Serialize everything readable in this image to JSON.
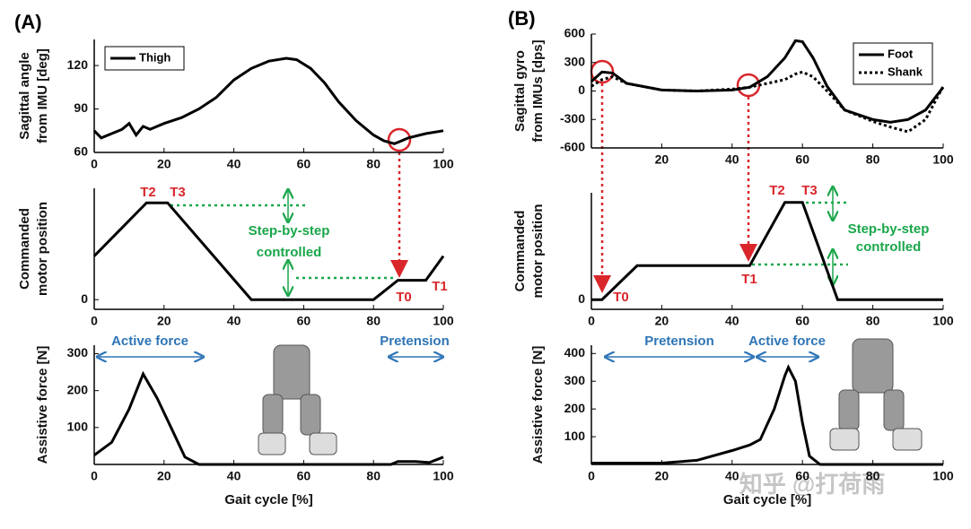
{
  "panel_labels": [
    "(A)",
    "(B)"
  ],
  "watermark": "知乎 @打荷雨",
  "chart_data": [
    {
      "type": "line",
      "y_label": [
        "Sagittal angle",
        "from IMU [deg]"
      ],
      "x": [
        0,
        2,
        5,
        8,
        10,
        12,
        14,
        16,
        20,
        25,
        30,
        35,
        40,
        45,
        50,
        55,
        58,
        62,
        66,
        70,
        75,
        80,
        83,
        86,
        88,
        90,
        95,
        100
      ],
      "series": [
        {
          "name": "Thigh",
          "color": "#000000",
          "linestyle": "solid",
          "values": [
            75,
            70,
            73,
            76,
            80,
            72,
            78,
            76,
            80,
            84,
            90,
            98,
            110,
            118,
            123,
            125,
            124,
            118,
            108,
            95,
            82,
            72,
            68,
            66,
            68,
            70,
            73,
            75
          ]
        }
      ],
      "xlim": [
        0,
        100
      ],
      "xticks": [
        0,
        20,
        40,
        60,
        80,
        100
      ],
      "ylim": [
        60,
        138
      ],
      "yticks": [
        60,
        90,
        120
      ],
      "legend": "upper left"
    },
    {
      "type": "line",
      "y_label": [
        "Commanded",
        "motor position"
      ],
      "x": [
        0,
        15,
        21,
        45,
        80,
        87,
        95,
        100
      ],
      "values": [
        0.45,
        1,
        1,
        0,
        0,
        0.2,
        0.2,
        0.45
      ],
      "color": "#000000",
      "xlim": [
        0,
        100
      ],
      "xticks": [
        0,
        20,
        40,
        60,
        80,
        100
      ],
      "ylim": [
        -0.1,
        1.15
      ],
      "yticks": [
        0
      ],
      "annotations": [
        {
          "text": "T2",
          "color": "#d9262b"
        },
        {
          "text": "T3",
          "color": "#d9262b"
        },
        {
          "text": "Step-by-step",
          "color": "#1aa64a"
        },
        {
          "text": "controlled",
          "color": "#1aa64a"
        },
        {
          "text": "T0",
          "color": "#d9262b"
        },
        {
          "text": "T1",
          "color": "#d9262b"
        }
      ]
    },
    {
      "type": "line",
      "y_label": [
        "Assistive force [N]"
      ],
      "x_label": "Gait cycle [%]",
      "x": [
        0,
        5,
        10,
        14,
        18,
        22,
        26,
        30,
        85,
        87,
        92,
        96,
        100
      ],
      "values": [
        25,
        60,
        150,
        245,
        180,
        100,
        20,
        0,
        0,
        8,
        8,
        5,
        20
      ],
      "color": "#000000",
      "xlim": [
        0,
        100
      ],
      "xticks": [
        0,
        20,
        40,
        60,
        80,
        100
      ],
      "ylim": [
        0,
        323
      ],
      "yticks": [
        100,
        200,
        300
      ],
      "annotations": [
        {
          "text": "Active force",
          "color": "#2e75b6"
        },
        {
          "text": "Pretension",
          "color": "#2e75b6"
        }
      ]
    },
    {
      "type": "line",
      "y_label": [
        "Sagittal gyro",
        "from IMUs [dps]"
      ],
      "x": [
        0,
        3,
        6,
        10,
        20,
        30,
        40,
        45,
        50,
        55,
        58,
        60,
        63,
        67,
        72,
        80,
        85,
        90,
        95,
        100
      ],
      "series": [
        {
          "name": "Foot",
          "color": "#000000",
          "linestyle": "solid",
          "values": [
            100,
            200,
            190,
            80,
            10,
            0,
            10,
            40,
            150,
            350,
            530,
            520,
            350,
            50,
            -200,
            -300,
            -330,
            -300,
            -200,
            40
          ]
        },
        {
          "name": "Shank",
          "color": "#000000",
          "linestyle": "dotted",
          "values": [
            50,
            120,
            150,
            80,
            10,
            0,
            20,
            40,
            80,
            120,
            180,
            200,
            150,
            0,
            -200,
            -320,
            -380,
            -430,
            -300,
            50
          ]
        }
      ],
      "xlim": [
        0,
        100
      ],
      "xticks": [
        20,
        40,
        60,
        80,
        100
      ],
      "ylim": [
        -600,
        600
      ],
      "yticks": [
        -600,
        -300,
        0,
        300,
        600
      ],
      "legend": "upper right"
    },
    {
      "type": "line",
      "y_label": [
        "Commanded",
        "motor position"
      ],
      "x": [
        0,
        3,
        13,
        45,
        55,
        60,
        70,
        100
      ],
      "values": [
        0,
        0,
        0.35,
        0.35,
        1,
        1,
        0,
        0
      ],
      "color": "#000000",
      "xlim": [
        0,
        100
      ],
      "xticks": [
        0,
        20,
        40,
        60,
        80,
        100
      ],
      "ylim": [
        -0.1,
        1.1
      ],
      "yticks": [
        0
      ],
      "annotations": [
        {
          "text": "T0",
          "color": "#d9262b"
        },
        {
          "text": "T1",
          "color": "#d9262b"
        },
        {
          "text": "T2",
          "color": "#d9262b"
        },
        {
          "text": "T3",
          "color": "#d9262b"
        },
        {
          "text": "Step-by-step",
          "color": "#1aa64a"
        },
        {
          "text": "controlled",
          "color": "#1aa64a"
        }
      ]
    },
    {
      "type": "line",
      "y_label": [
        "Assistive force [N]"
      ],
      "x_label": "Gait cycle [%]",
      "x": [
        0,
        20,
        30,
        40,
        45,
        48,
        52,
        55,
        56,
        58,
        60,
        62,
        65,
        100
      ],
      "values": [
        5,
        5,
        15,
        50,
        70,
        90,
        200,
        320,
        350,
        300,
        150,
        30,
        0,
        0
      ],
      "color": "#000000",
      "xlim": [
        0,
        100
      ],
      "xticks": [
        0,
        20,
        40,
        60,
        80,
        100
      ],
      "ylim": [
        0,
        430
      ],
      "yticks": [
        100,
        200,
        300,
        400
      ],
      "annotations": [
        {
          "text": "Pretension",
          "color": "#2e75b6"
        },
        {
          "text": "Active force",
          "color": "#2e75b6"
        }
      ]
    }
  ]
}
